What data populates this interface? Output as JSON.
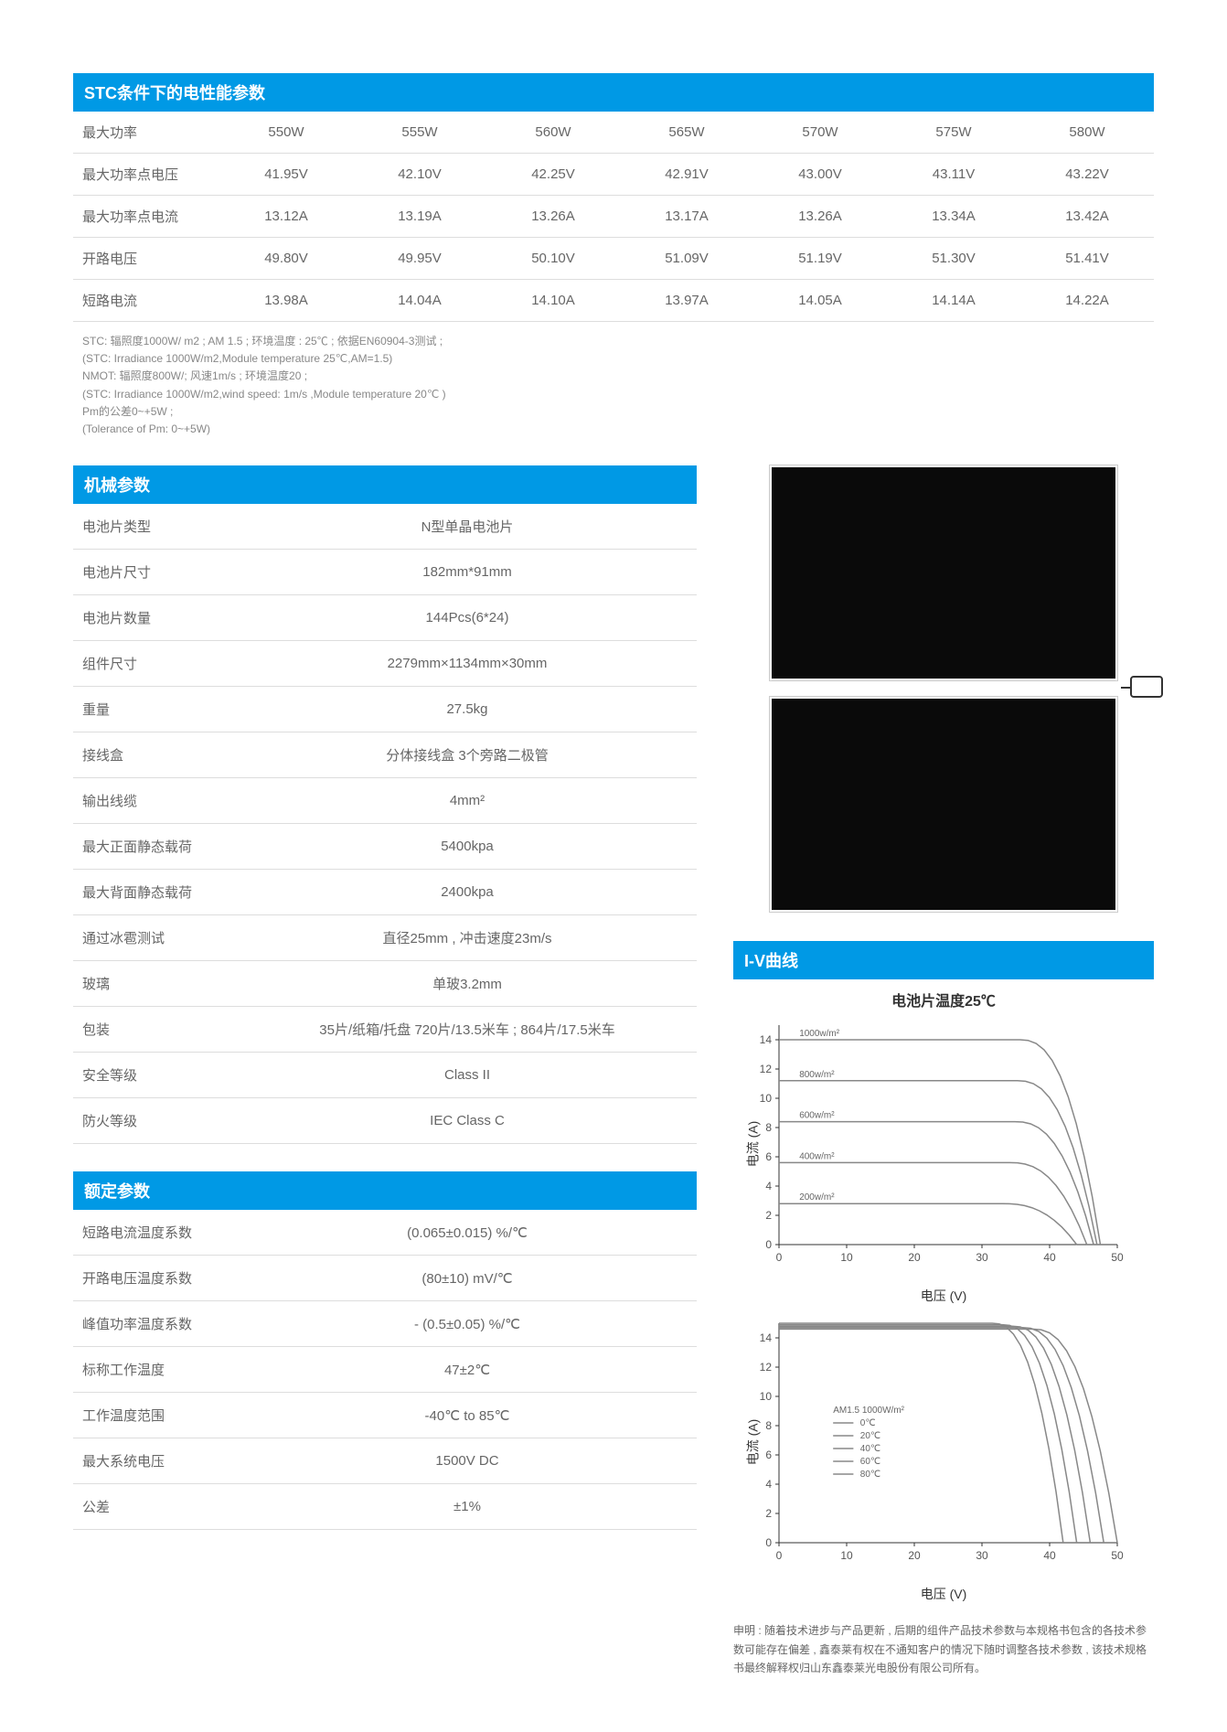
{
  "stc": {
    "title": "STC条件下的电性能参数",
    "rows": [
      {
        "label": "最大功率",
        "vals": [
          "550W",
          "555W",
          "560W",
          "565W",
          "570W",
          "575W",
          "580W"
        ]
      },
      {
        "label": "最大功率点电压",
        "vals": [
          "41.95V",
          "42.10V",
          "42.25V",
          "42.91V",
          "43.00V",
          "43.11V",
          "43.22V"
        ]
      },
      {
        "label": "最大功率点电流",
        "vals": [
          "13.12A",
          "13.19A",
          "13.26A",
          "13.17A",
          "13.26A",
          "13.34A",
          "13.42A"
        ]
      },
      {
        "label": "开路电压",
        "vals": [
          "49.80V",
          "49.95V",
          "50.10V",
          "51.09V",
          "51.19V",
          "51.30V",
          "51.41V"
        ]
      },
      {
        "label": "短路电流",
        "vals": [
          "13.98A",
          "14.04A",
          "14.10A",
          "13.97A",
          "14.05A",
          "14.14A",
          "14.22A"
        ]
      }
    ],
    "notes": [
      "STC: 辐照度1000W/ m2 ; AM 1.5 ; 环境温度 : 25℃ ; 依据EN60904-3测试 ;",
      "(STC: Irradiance 1000W/m2,Module temperature 25℃,AM=1.5)",
      "NMOT: 辐照度800W/; 风速1m/s ; 环境温度20 ;",
      "(STC: Irradiance 1000W/m2,wind speed: 1m/s ,Module temperature 20℃ )",
      "Pm的公差0~+5W ;",
      "(Tolerance of Pm: 0~+5W)"
    ]
  },
  "mech": {
    "title": "机械参数",
    "rows": [
      {
        "label": "电池片类型",
        "val": "N型单晶电池片"
      },
      {
        "label": "电池片尺寸",
        "val": "182mm*91mm"
      },
      {
        "label": "电池片数量",
        "val": "144Pcs(6*24)"
      },
      {
        "label": "组件尺寸",
        "val": "2279mm×1134mm×30mm"
      },
      {
        "label": "重量",
        "val": "27.5kg"
      },
      {
        "label": "接线盒",
        "val": "分体接线盒 3个旁路二极管"
      },
      {
        "label": "输出线缆",
        "val": "4mm²"
      },
      {
        "label": "最大正面静态载荷",
        "val": "5400kpa"
      },
      {
        "label": "最大背面静态载荷",
        "val": "2400kpa"
      },
      {
        "label": "通过冰雹测试",
        "val": "直径25mm , 冲击速度23m/s"
      },
      {
        "label": "玻璃",
        "val": "单玻3.2mm"
      },
      {
        "label": "包装",
        "val": "35片/纸箱/托盘 720片/13.5米车 ; 864片/17.5米车"
      },
      {
        "label": "安全等级",
        "val": "Class II"
      },
      {
        "label": "防火等级",
        "val": "IEC Class C"
      }
    ]
  },
  "rated": {
    "title": "额定参数",
    "rows": [
      {
        "label": "短路电流温度系数",
        "val": "(0.065±0.015) %/℃"
      },
      {
        "label": "开路电压温度系数",
        "val": "(80±10) mV/℃"
      },
      {
        "label": "峰值功率温度系数",
        "val": "- (0.5±0.05) %/℃"
      },
      {
        "label": "标称工作温度",
        "val": "47±2℃"
      },
      {
        "label": "工作温度范围",
        "val": "-40℃ to 85℃"
      },
      {
        "label": "最大系统电压",
        "val": "1500V DC"
      },
      {
        "label": "公差",
        "val": "±1%"
      }
    ]
  },
  "iv": {
    "title": "I-V曲线",
    "chart1": {
      "title": "电池片温度25℃",
      "ylabel": "电流 (A)",
      "xlabel": "电压 (V)",
      "xlim": [
        0,
        50
      ],
      "ylim": [
        0,
        15
      ],
      "xticks": [
        0,
        10,
        20,
        30,
        40,
        50
      ],
      "yticks": [
        0,
        2,
        4,
        6,
        8,
        10,
        12,
        14
      ],
      "curves": [
        {
          "label": "1000w/m²",
          "isc": 14.0,
          "voc": 47.5,
          "color": "#888"
        },
        {
          "label": "800w/m²",
          "isc": 11.2,
          "voc": 47.0,
          "color": "#888"
        },
        {
          "label": "600w/m²",
          "isc": 8.4,
          "voc": 46.5,
          "color": "#888"
        },
        {
          "label": "400w/m²",
          "isc": 5.6,
          "voc": 45.5,
          "color": "#888"
        },
        {
          "label": "200w/m²",
          "isc": 2.8,
          "voc": 44.0,
          "color": "#888"
        }
      ],
      "grid_color": "#aaa",
      "line_width": 1.5,
      "tick_fontsize": 12
    },
    "chart2": {
      "ylabel": "电流 (A)",
      "xlabel": "电压 (V)",
      "xlim": [
        0,
        50
      ],
      "ylim": [
        0,
        15
      ],
      "xticks": [
        0,
        10,
        20,
        30,
        40,
        50
      ],
      "yticks": [
        0,
        2,
        4,
        6,
        8,
        10,
        12,
        14
      ],
      "cond": "AM1.5 1000W/m²",
      "curves": [
        {
          "label": "0℃",
          "isc": 14.6,
          "voc": 50.0,
          "color": "#888"
        },
        {
          "label": "20℃",
          "isc": 14.7,
          "voc": 48.0,
          "color": "#888"
        },
        {
          "label": "40℃",
          "isc": 14.8,
          "voc": 46.0,
          "color": "#888"
        },
        {
          "label": "60℃",
          "isc": 14.9,
          "voc": 44.0,
          "color": "#888"
        },
        {
          "label": "80℃",
          "isc": 15.0,
          "voc": 42.0,
          "color": "#888"
        }
      ],
      "grid_color": "#aaa",
      "line_width": 1.5,
      "tick_fontsize": 12
    }
  },
  "disclaimer": "申明 : 随着技术进步与产品更新 , 后期的组件产品技术参数与本规格书包含的各技术参数可能存在偏差 , 鑫泰莱有权在不通知客户的情况下随时调整各技术参数 , 该技术规格书最终解释权归山东鑫泰莱光电股份有限公司所有。"
}
